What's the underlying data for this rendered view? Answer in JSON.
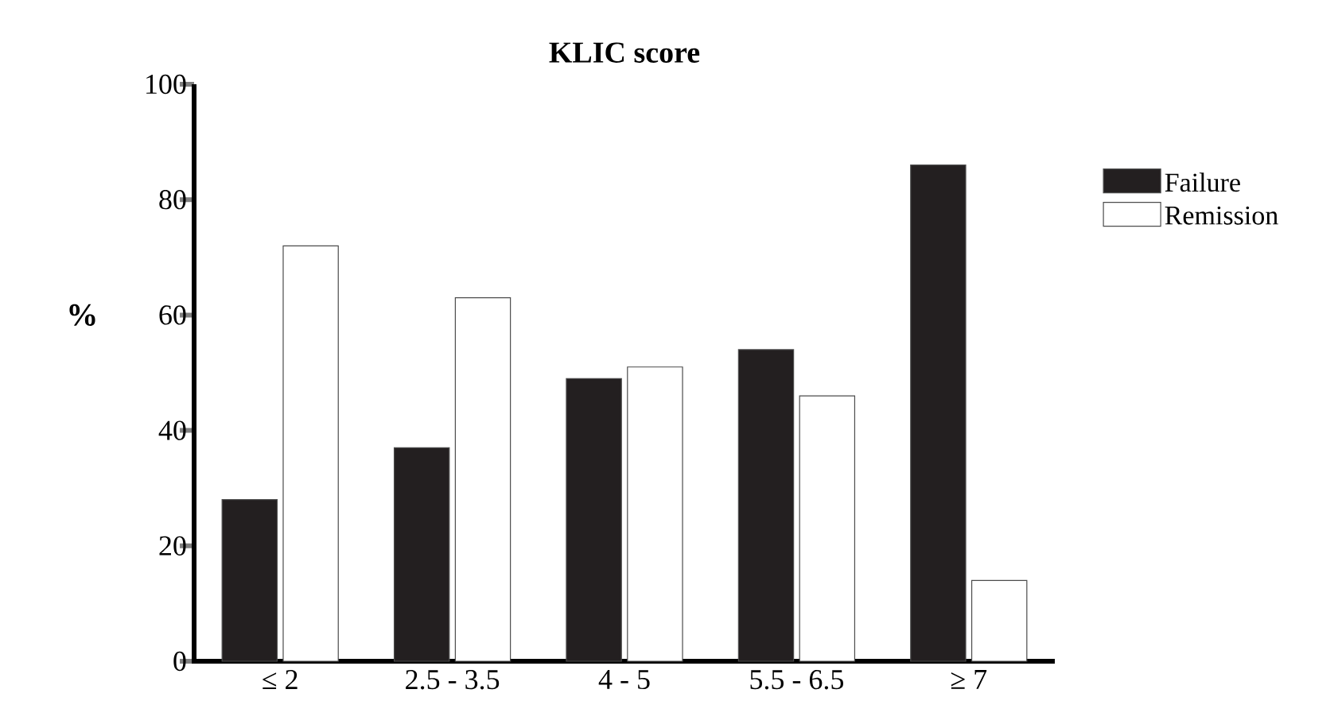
{
  "chart_data": {
    "type": "bar",
    "title": "KLIC score",
    "ylabel": "%",
    "categories": [
      "≤ 2",
      "2.5 - 3.5",
      "4 - 5",
      "5.5 - 6.5",
      "≥ 7"
    ],
    "series": [
      {
        "name": "Failure",
        "color": "#231f20",
        "values": [
          28,
          37,
          49,
          54,
          86
        ]
      },
      {
        "name": "Remission",
        "color": "#ffffff",
        "values": [
          72,
          63,
          51,
          46,
          14
        ]
      }
    ],
    "ylim": [
      0,
      100
    ],
    "yticks": [
      0,
      20,
      40,
      60,
      80,
      100
    ],
    "legend": "top right"
  }
}
